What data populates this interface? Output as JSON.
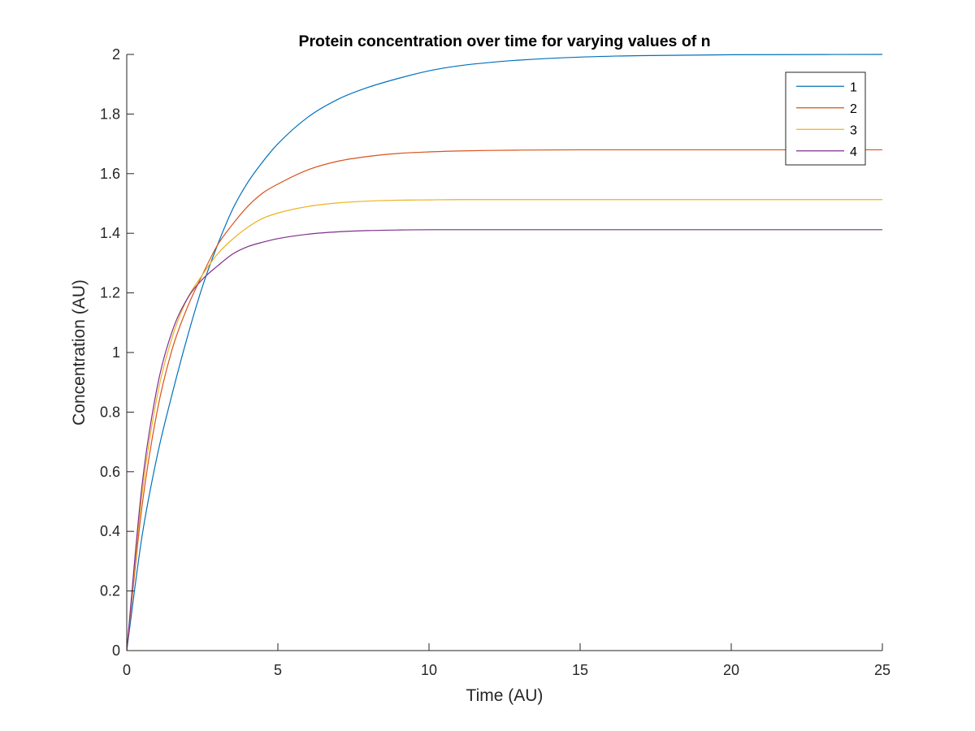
{
  "chart_data": {
    "type": "line",
    "title": "Protein concentration over time for varying values of n",
    "xlabel": "Time (AU)",
    "ylabel": "Concentration (AU)",
    "xlim": [
      0,
      25
    ],
    "ylim": [
      0,
      2
    ],
    "xticks": [
      0,
      5,
      10,
      15,
      20,
      25
    ],
    "xtick_labels": [
      "0",
      "5",
      "10",
      "15",
      "20",
      "25"
    ],
    "yticks": [
      0,
      0.2,
      0.4,
      0.6,
      0.8,
      1,
      1.2,
      1.4,
      1.6,
      1.8,
      2
    ],
    "ytick_labels": [
      "0",
      "0.2",
      "0.4",
      "0.6",
      "0.8",
      "1",
      "1.2",
      "1.4",
      "1.6",
      "1.8",
      "2"
    ],
    "grid": false,
    "legend_position": "top-right",
    "x": [
      0,
      0.5,
      1,
      1.5,
      2,
      2.5,
      3,
      3.5,
      4,
      4.5,
      5,
      6,
      7,
      8,
      9,
      10,
      11,
      12,
      13,
      15,
      17,
      20,
      25
    ],
    "series": [
      {
        "name": "1",
        "color": "#0072BD",
        "values": [
          0,
          0.38,
          0.65,
          0.86,
          1.05,
          1.22,
          1.36,
          1.48,
          1.57,
          1.64,
          1.7,
          1.79,
          1.85,
          1.89,
          1.92,
          1.945,
          1.962,
          1.973,
          1.981,
          1.991,
          1.996,
          1.999,
          2.0
        ]
      },
      {
        "name": "2",
        "color": "#D95319",
        "values": [
          0,
          0.48,
          0.8,
          1.01,
          1.15,
          1.26,
          1.36,
          1.43,
          1.49,
          1.535,
          1.565,
          1.613,
          1.642,
          1.658,
          1.668,
          1.673,
          1.676,
          1.678,
          1.679,
          1.68,
          1.68,
          1.68,
          1.68
        ]
      },
      {
        "name": "3",
        "color": "#EDB120",
        "values": [
          0,
          0.52,
          0.85,
          1.05,
          1.18,
          1.26,
          1.33,
          1.38,
          1.42,
          1.45,
          1.468,
          1.49,
          1.502,
          1.508,
          1.511,
          1.512,
          1.513,
          1.513,
          1.513,
          1.513,
          1.513,
          1.513,
          1.513
        ]
      },
      {
        "name": "4",
        "color": "#7E2F8E",
        "values": [
          0,
          0.55,
          0.88,
          1.07,
          1.18,
          1.245,
          1.29,
          1.33,
          1.355,
          1.37,
          1.382,
          1.397,
          1.405,
          1.409,
          1.411,
          1.412,
          1.412,
          1.412,
          1.412,
          1.412,
          1.412,
          1.412,
          1.412
        ]
      }
    ]
  }
}
